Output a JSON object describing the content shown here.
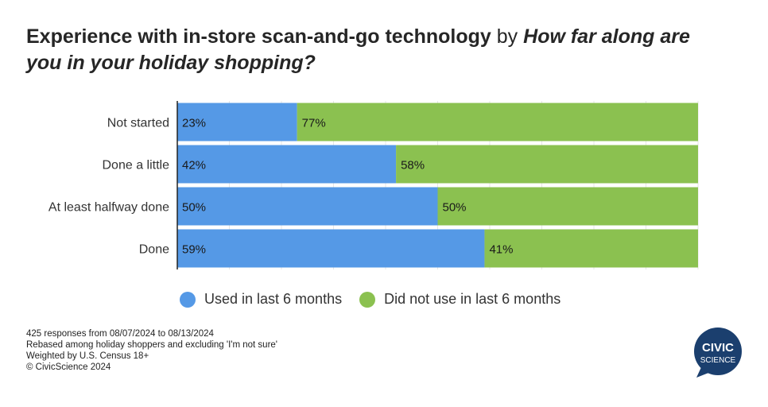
{
  "title": {
    "main": "Experience with in-store scan-and-go technology",
    "connector": "by",
    "question": "How far along are you in your holiday shopping?"
  },
  "chart_data": {
    "type": "bar",
    "orientation": "horizontal",
    "stacked": true,
    "categories": [
      "Not started",
      "Done a little",
      "At least halfway done",
      "Done"
    ],
    "series": [
      {
        "name": "Used in last 6 months",
        "color": "#5599E6",
        "values": [
          23,
          42,
          50,
          59
        ]
      },
      {
        "name": "Did not use in last 6 months",
        "color": "#8BC150",
        "values": [
          77,
          58,
          50,
          41
        ]
      }
    ],
    "value_suffix": "%",
    "xlim": [
      0,
      100
    ],
    "grid": true,
    "legend_position": "bottom"
  },
  "footnotes": [
    "425 responses from 08/07/2024 to 08/13/2024",
    "Rebased among holiday shoppers and excluding 'I'm not sure'",
    "Weighted by U.S. Census 18+",
    "© CivicScience 2024"
  ],
  "logo": {
    "line1": "CIVIC",
    "line2": "SCIENCE",
    "color": "#1B3F6E"
  }
}
